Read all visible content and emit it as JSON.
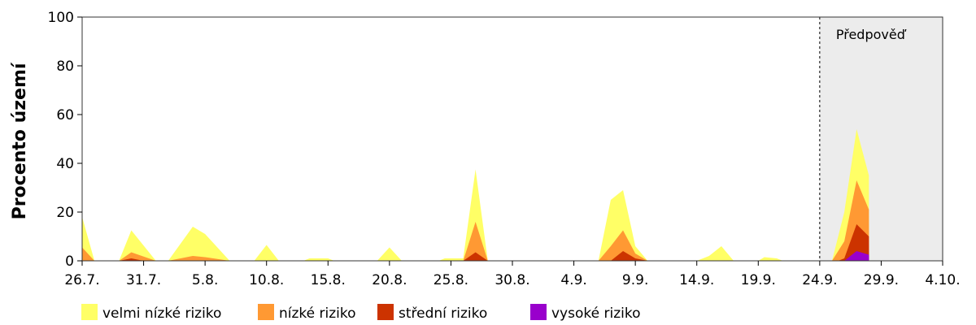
{
  "chart_data": {
    "type": "area",
    "stacked": true,
    "ylabel": "Procento území",
    "xlabel": "",
    "ylim": [
      0,
      100
    ],
    "yticks": [
      0,
      20,
      40,
      60,
      80,
      100
    ],
    "x_range_days": [
      0,
      70
    ],
    "xtick_labels": [
      "26.7.",
      "31.7.",
      "5.8.",
      "10.8.",
      "15.8.",
      "20.8.",
      "25.8.",
      "30.8.",
      "4.9.",
      "9.9.",
      "14.9.",
      "19.9.",
      "24.9.",
      "29.9.",
      "4.10."
    ],
    "xtick_days": [
      0,
      5,
      10,
      15,
      20,
      25,
      30,
      35,
      40,
      45,
      50,
      55,
      60,
      65,
      70
    ],
    "forecast": {
      "label": "Předpověď",
      "start_day": 60,
      "end_day": 70,
      "background": "#ececec"
    },
    "legend_position": "bottom",
    "series_order_note": "cumulative tops listed per series; drawn back-to-front",
    "series": [
      {
        "name": "velmi nízké riziko",
        "color": "#ffff66",
        "points": [
          [
            0,
            18
          ],
          [
            1,
            0
          ],
          [
            3,
            0
          ],
          [
            4,
            12.5
          ],
          [
            6,
            0
          ],
          [
            7,
            0
          ],
          [
            9,
            14
          ],
          [
            10,
            11
          ],
          [
            12,
            0
          ],
          [
            14,
            0
          ],
          [
            15,
            6.5
          ],
          [
            16,
            0
          ],
          [
            18,
            0
          ],
          [
            18.5,
            1
          ],
          [
            20,
            1
          ],
          [
            20.5,
            0
          ],
          [
            24,
            0
          ],
          [
            25,
            5.5
          ],
          [
            26,
            0
          ],
          [
            29,
            0
          ],
          [
            29.5,
            1
          ],
          [
            31,
            1
          ],
          [
            32,
            37.5
          ],
          [
            33,
            0
          ],
          [
            42,
            0
          ],
          [
            43,
            25
          ],
          [
            44,
            29
          ],
          [
            45,
            6
          ],
          [
            46,
            0
          ],
          [
            50,
            0
          ],
          [
            51,
            2
          ],
          [
            52,
            6
          ],
          [
            53,
            0
          ],
          [
            55,
            0
          ],
          [
            55.5,
            1.5
          ],
          [
            56.5,
            1
          ],
          [
            57,
            0
          ],
          [
            61,
            0
          ],
          [
            62,
            20
          ],
          [
            63,
            54
          ],
          [
            64,
            35
          ],
          [
            64.01,
            0
          ]
        ]
      },
      {
        "name": "nízké riziko",
        "color": "#ff9933",
        "points": [
          [
            0,
            5.5
          ],
          [
            1,
            0
          ],
          [
            3,
            0
          ],
          [
            4,
            3.5
          ],
          [
            6,
            0
          ],
          [
            7,
            0
          ],
          [
            9,
            2
          ],
          [
            10,
            1.5
          ],
          [
            12,
            0
          ],
          [
            31,
            0
          ],
          [
            32,
            16
          ],
          [
            33,
            0
          ],
          [
            42,
            0
          ],
          [
            43,
            6
          ],
          [
            44,
            12.5
          ],
          [
            45,
            3
          ],
          [
            46,
            0
          ],
          [
            61,
            0
          ],
          [
            62,
            8
          ],
          [
            63,
            33
          ],
          [
            64,
            21
          ],
          [
            64.01,
            0
          ]
        ]
      },
      {
        "name": "střední riziko",
        "color": "#cc3300",
        "points": [
          [
            3,
            0
          ],
          [
            4,
            1
          ],
          [
            5,
            0
          ],
          [
            31,
            0
          ],
          [
            32,
            3.5
          ],
          [
            33,
            0
          ],
          [
            43,
            0
          ],
          [
            44,
            4
          ],
          [
            45,
            1
          ],
          [
            46,
            0
          ],
          [
            61.5,
            0
          ],
          [
            62,
            1
          ],
          [
            63,
            15
          ],
          [
            64,
            10
          ],
          [
            64.01,
            0
          ]
        ]
      },
      {
        "name": "vysoké riziko",
        "color": "#9900cc",
        "points": [
          [
            62,
            0
          ],
          [
            63,
            4
          ],
          [
            64,
            2.5
          ],
          [
            64.01,
            0
          ]
        ]
      }
    ]
  }
}
